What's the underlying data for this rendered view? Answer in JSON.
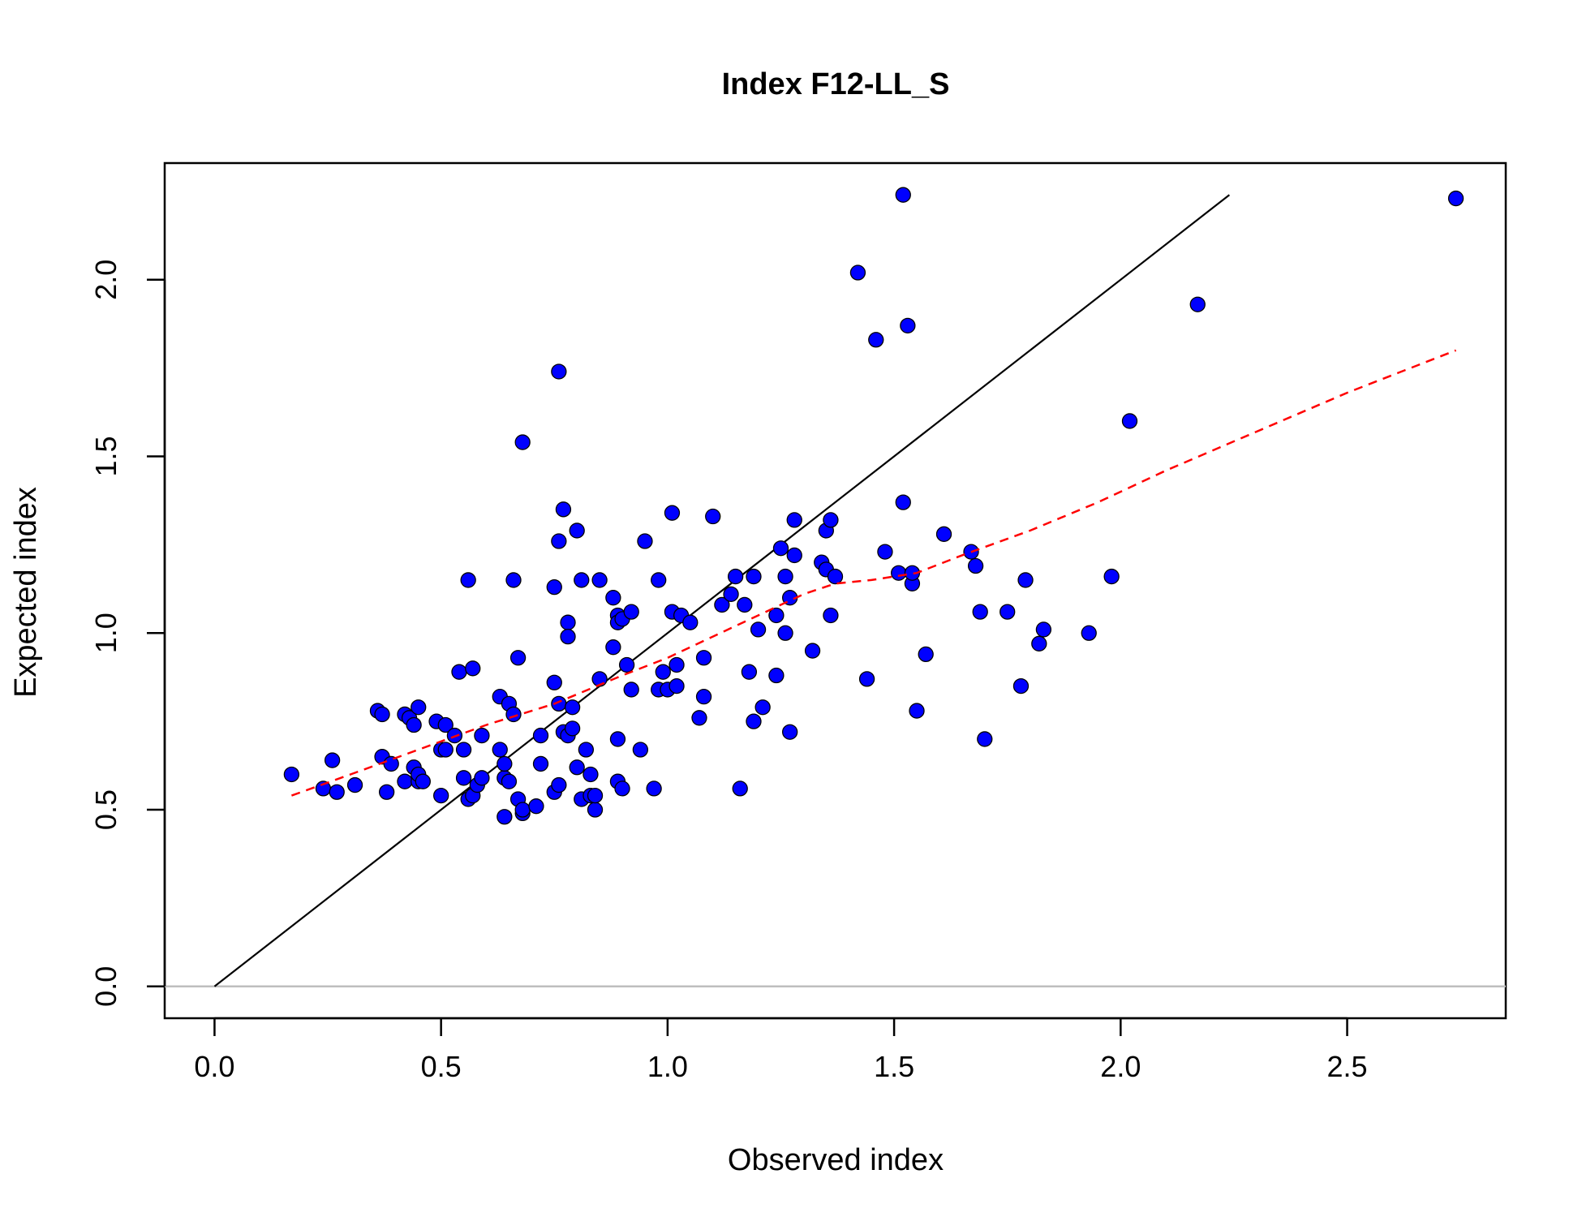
{
  "chart_data": {
    "type": "scatter",
    "title": "Index F12-LL_S",
    "xlabel": "Observed index",
    "ylabel": "Expected index",
    "xlim": [
      -0.11,
      2.85
    ],
    "ylim": [
      -0.09,
      2.33
    ],
    "xticks": [
      0.0,
      0.5,
      1.0,
      1.5,
      2.0,
      2.5
    ],
    "yticks": [
      0.0,
      0.5,
      1.0,
      1.5,
      2.0
    ],
    "xtick_labels": [
      "0.0",
      "0.5",
      "1.0",
      "1.5",
      "2.0",
      "2.5"
    ],
    "ytick_labels": [
      "0.0",
      "0.5",
      "1.0",
      "1.5",
      "2.0"
    ],
    "grid": false,
    "points": {
      "color": "#0000ff",
      "x": [
        0.17,
        0.24,
        0.26,
        0.27,
        0.31,
        0.36,
        0.37,
        0.37,
        0.38,
        0.39,
        0.42,
        0.42,
        0.43,
        0.44,
        0.44,
        0.45,
        0.45,
        0.45,
        0.46,
        0.49,
        0.5,
        0.5,
        0.51,
        0.51,
        0.53,
        0.54,
        0.55,
        0.55,
        0.56,
        0.56,
        0.57,
        0.57,
        0.58,
        0.59,
        0.59,
        0.63,
        0.63,
        0.64,
        0.64,
        0.64,
        0.65,
        0.65,
        0.66,
        0.66,
        0.67,
        0.67,
        0.68,
        0.68,
        0.68,
        0.71,
        0.72,
        0.72,
        0.75,
        0.75,
        0.75,
        0.76,
        0.76,
        0.76,
        0.76,
        0.77,
        0.77,
        0.78,
        0.78,
        0.78,
        0.79,
        0.79,
        0.8,
        0.8,
        0.81,
        0.81,
        0.82,
        0.83,
        0.83,
        0.84,
        0.84,
        0.85,
        0.85,
        0.88,
        0.88,
        0.89,
        0.89,
        0.89,
        0.89,
        0.9,
        0.9,
        0.91,
        0.92,
        0.92,
        0.94,
        0.95,
        0.97,
        0.98,
        0.98,
        0.99,
        1.0,
        1.01,
        1.01,
        1.02,
        1.02,
        1.03,
        1.05,
        1.07,
        1.08,
        1.08,
        1.1,
        1.12,
        1.14,
        1.15,
        1.16,
        1.17,
        1.18,
        1.19,
        1.19,
        1.2,
        1.21,
        1.24,
        1.24,
        1.25,
        1.26,
        1.26,
        1.27,
        1.27,
        1.28,
        1.28,
        1.32,
        1.34,
        1.35,
        1.35,
        1.36,
        1.36,
        1.37,
        1.42,
        1.44,
        1.46,
        1.48,
        1.51,
        1.52,
        1.52,
        1.53,
        1.54,
        1.54,
        1.55,
        1.57,
        1.61,
        1.67,
        1.68,
        1.69,
        1.7,
        1.75,
        1.78,
        1.79,
        1.82,
        1.83,
        1.93,
        1.98,
        2.02,
        2.17,
        2.74
      ],
      "y": [
        0.6,
        0.56,
        0.64,
        0.55,
        0.57,
        0.78,
        0.65,
        0.77,
        0.55,
        0.63,
        0.58,
        0.77,
        0.76,
        0.62,
        0.74,
        0.58,
        0.79,
        0.6,
        0.58,
        0.75,
        0.54,
        0.67,
        0.74,
        0.67,
        0.71,
        0.89,
        0.59,
        0.67,
        0.53,
        1.15,
        0.54,
        0.9,
        0.57,
        0.71,
        0.59,
        0.67,
        0.82,
        0.59,
        0.48,
        0.63,
        0.8,
        0.58,
        0.77,
        1.15,
        0.93,
        0.53,
        0.49,
        0.5,
        1.54,
        0.51,
        0.63,
        0.71,
        0.86,
        0.55,
        1.13,
        0.57,
        1.74,
        0.8,
        1.26,
        0.72,
        1.35,
        0.71,
        1.03,
        0.99,
        0.79,
        0.73,
        0.62,
        1.29,
        1.15,
        0.53,
        0.67,
        0.6,
        0.54,
        0.5,
        0.54,
        1.15,
        0.87,
        1.1,
        0.96,
        0.7,
        1.05,
        0.58,
        1.03,
        0.56,
        1.04,
        0.91,
        1.06,
        0.84,
        0.67,
        1.26,
        0.56,
        1.15,
        0.84,
        0.89,
        0.84,
        1.06,
        1.34,
        0.91,
        0.85,
        1.05,
        1.03,
        0.76,
        0.93,
        0.82,
        1.33,
        1.08,
        1.11,
        1.16,
        0.56,
        1.08,
        0.89,
        0.75,
        1.16,
        1.01,
        0.79,
        0.88,
        1.05,
        1.24,
        1.0,
        1.16,
        0.72,
        1.1,
        1.22,
        1.32,
        0.95,
        1.2,
        1.29,
        1.18,
        1.05,
        1.32,
        1.16,
        2.02,
        0.87,
        1.83,
        1.23,
        1.17,
        1.37,
        2.24,
        1.87,
        1.14,
        1.17,
        0.78,
        0.94,
        1.28,
        1.23,
        1.19,
        1.06,
        0.7,
        1.06,
        0.85,
        1.15,
        0.97,
        1.01,
        1.0,
        1.16,
        1.6,
        1.93,
        2.23
      ]
    },
    "reference_line": {
      "color": "#000000",
      "x": [
        0.0,
        2.24
      ],
      "y": [
        0.0,
        2.24
      ]
    },
    "zero_line": {
      "color": "#bebebe",
      "y": 0.0
    },
    "smooth_line": {
      "color": "#ff0000",
      "style": "dashed",
      "x": [
        0.17,
        0.3,
        0.45,
        0.6,
        0.75,
        0.9,
        1.0,
        1.1,
        1.2,
        1.3,
        1.37,
        1.45,
        1.55,
        1.65,
        1.8,
        1.95,
        2.1,
        2.3,
        2.5,
        2.74
      ],
      "y": [
        0.54,
        0.6,
        0.67,
        0.74,
        0.8,
        0.88,
        0.93,
        0.99,
        1.05,
        1.11,
        1.14,
        1.15,
        1.17,
        1.22,
        1.29,
        1.37,
        1.46,
        1.57,
        1.68,
        1.8
      ]
    }
  }
}
